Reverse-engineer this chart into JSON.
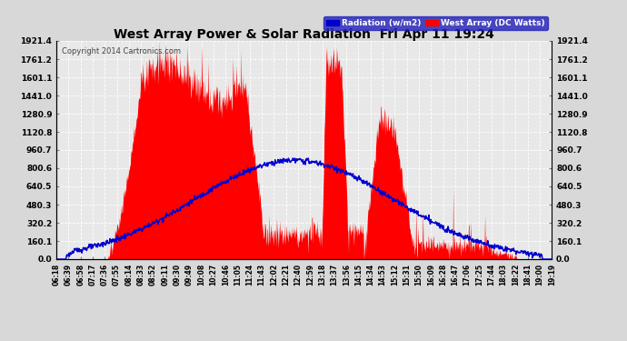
{
  "title": "West Array Power & Solar Radiation  Fri Apr 11 19:24",
  "copyright": "Copyright 2014 Cartronics.com",
  "legend_blue": "Radiation (w/m2)",
  "legend_red": "West Array (DC Watts)",
  "ymax": 1921.4,
  "yticks": [
    0.0,
    160.1,
    320.2,
    480.3,
    640.5,
    800.6,
    960.7,
    1120.8,
    1280.9,
    1441.0,
    1601.1,
    1761.2,
    1921.4
  ],
  "ytick_labels": [
    "0.0",
    "160.1",
    "320.2",
    "480.3",
    "640.5",
    "800.6",
    "960.7",
    "1120.8",
    "1280.9",
    "1441.0",
    "1601.1",
    "1761.2",
    "1921.4"
  ],
  "bg_color": "#d8d8d8",
  "plot_bg_color": "#e8e8e8",
  "grid_color": "#ffffff",
  "red_color": "#ff0000",
  "blue_color": "#0000cc",
  "title_color": "#000000",
  "xtick_labels": [
    "06:18",
    "06:39",
    "06:58",
    "07:17",
    "07:36",
    "07:55",
    "08:14",
    "08:33",
    "08:52",
    "09:11",
    "09:30",
    "09:49",
    "10:08",
    "10:27",
    "10:46",
    "11:05",
    "11:24",
    "11:43",
    "12:02",
    "12:21",
    "12:40",
    "12:59",
    "13:18",
    "13:37",
    "13:56",
    "14:15",
    "14:34",
    "14:53",
    "15:12",
    "15:31",
    "15:50",
    "16:09",
    "16:28",
    "16:47",
    "17:06",
    "17:25",
    "17:44",
    "18:03",
    "18:22",
    "18:41",
    "19:00",
    "19:19"
  ]
}
